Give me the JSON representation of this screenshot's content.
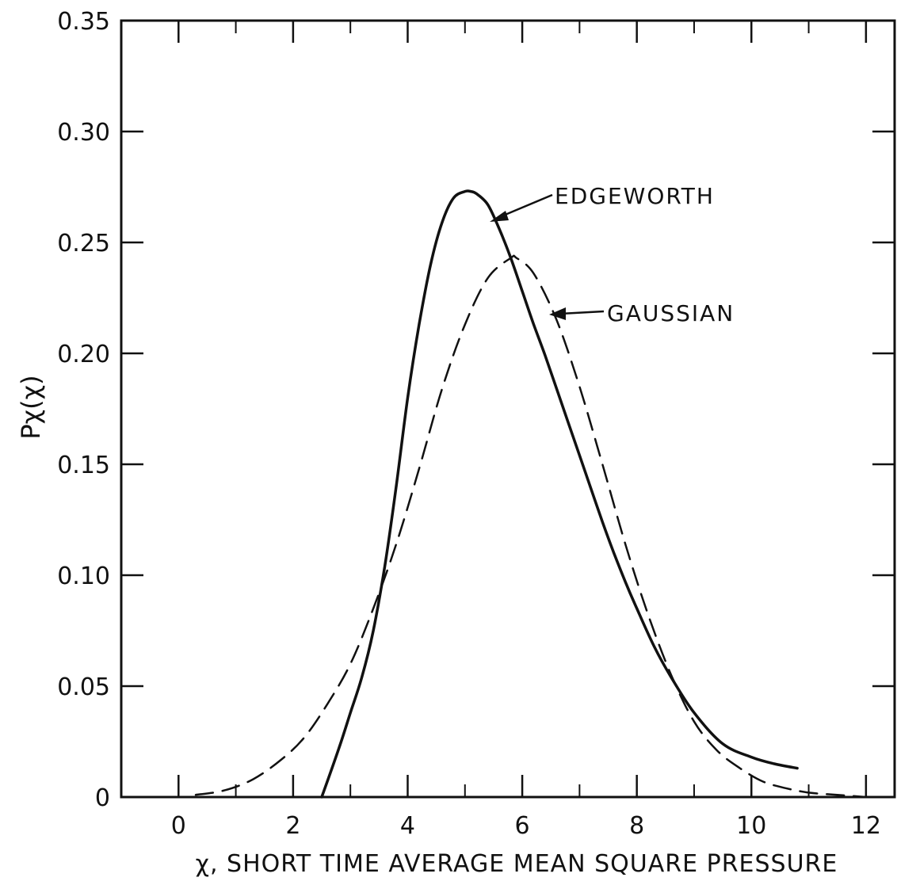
{
  "chart_data": {
    "type": "line",
    "title": "",
    "xlabel": "χ, SHORT TIME AVERAGE MEAN SQUARE PRESSURE",
    "ylabel": "Pχ(χ)",
    "xlim": [
      -1,
      12.5
    ],
    "ylim": [
      0,
      0.35
    ],
    "x_ticks": [
      0,
      2,
      4,
      6,
      8,
      10,
      12
    ],
    "x_tick_labels": [
      "0",
      "2",
      "4",
      "6",
      "8",
      "10",
      "12"
    ],
    "y_ticks": [
      0,
      0.05,
      0.1,
      0.15,
      0.2,
      0.25,
      0.3,
      0.35
    ],
    "y_tick_labels": [
      "0",
      "0.05",
      "0.10",
      "0.15",
      "0.20",
      "0.25",
      "0.30",
      "0.35"
    ],
    "grid": false,
    "series": [
      {
        "name": "EDGEWORTH",
        "line_style": "solid",
        "color": "#111111",
        "x": [
          2.5,
          2.8,
          3.0,
          3.2,
          3.4,
          3.6,
          3.8,
          4.0,
          4.2,
          4.4,
          4.6,
          4.8,
          5.0,
          5.1,
          5.2,
          5.4,
          5.6,
          5.8,
          6.0,
          6.2,
          6.4,
          6.6,
          6.8,
          7.0,
          7.2,
          7.4,
          7.6,
          7.8,
          8.0,
          8.3,
          8.6,
          9.0,
          9.5,
          10.0,
          10.4,
          10.8
        ],
        "y": [
          0.0,
          0.022,
          0.038,
          0.054,
          0.075,
          0.104,
          0.14,
          0.18,
          0.213,
          0.24,
          0.259,
          0.27,
          0.273,
          0.273,
          0.272,
          0.267,
          0.256,
          0.243,
          0.228,
          0.213,
          0.199,
          0.184,
          0.169,
          0.154,
          0.139,
          0.124,
          0.11,
          0.097,
          0.085,
          0.068,
          0.054,
          0.038,
          0.024,
          0.018,
          0.015,
          0.013
        ]
      },
      {
        "name": "GAUSSIAN",
        "line_style": "dashed",
        "color": "#111111",
        "x": [
          0.3,
          0.8,
          1.3,
          1.8,
          2.2,
          2.6,
          3.0,
          3.4,
          3.8,
          4.2,
          4.6,
          5.0,
          5.4,
          5.8,
          5.9,
          6.2,
          6.6,
          7.0,
          7.4,
          7.8,
          8.2,
          8.6,
          9.0,
          9.4,
          9.8,
          10.2,
          10.6,
          11.0,
          11.5,
          12.0
        ],
        "y": [
          0.001,
          0.003,
          0.008,
          0.017,
          0.027,
          0.042,
          0.06,
          0.085,
          0.114,
          0.148,
          0.184,
          0.213,
          0.234,
          0.243,
          0.243,
          0.236,
          0.215,
          0.185,
          0.15,
          0.114,
          0.082,
          0.055,
          0.034,
          0.021,
          0.013,
          0.007,
          0.004,
          0.002,
          0.001,
          0.0
        ]
      }
    ],
    "annotations": [
      {
        "text": "EDGEWORTH",
        "points_to": [
          5.65,
          0.259
        ]
      },
      {
        "text": "GAUSSIAN",
        "points_to": [
          6.9,
          0.215
        ]
      }
    ]
  }
}
